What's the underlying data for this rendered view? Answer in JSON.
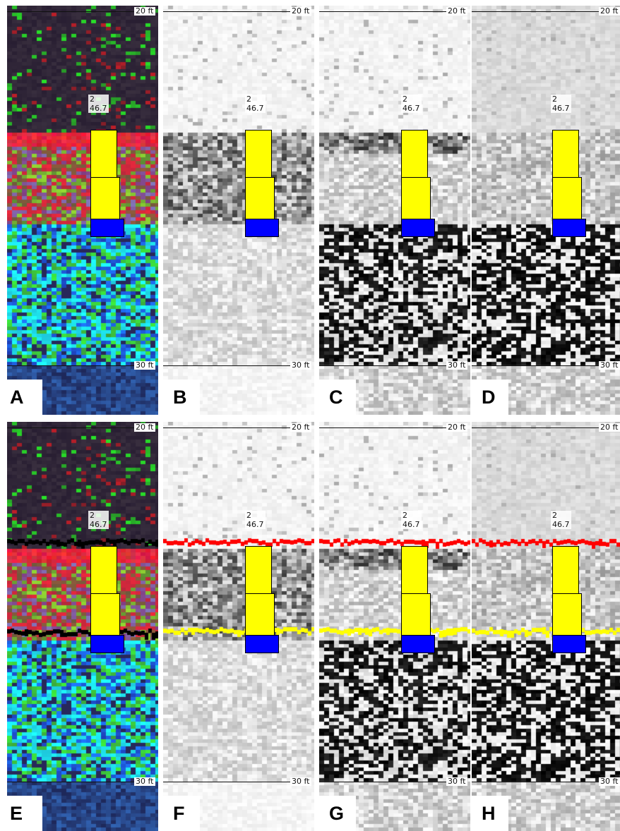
{
  "depth_top": "20 ft",
  "depth_bottom": "30 ft",
  "annotation_line1": "2",
  "annotation_line2": "46.7",
  "colors": {
    "top_boundary_color_overlay": "#ff0000",
    "bottom_boundary_color_overlay": "#ffff00",
    "boundary_false_color_overlay": "#000000",
    "glyph_fill": "#ffff00",
    "glyph_base": "#0000ff"
  },
  "panels": [
    {
      "id": "A",
      "label": "A",
      "style": "color",
      "overlay": false
    },
    {
      "id": "B",
      "label": "B",
      "style": "gray-light",
      "overlay": false
    },
    {
      "id": "C",
      "label": "C",
      "style": "gray-medium",
      "overlay": false
    },
    {
      "id": "D",
      "label": "D",
      "style": "gray-strong",
      "overlay": false
    },
    {
      "id": "E",
      "label": "E",
      "style": "color",
      "overlay": true
    },
    {
      "id": "F",
      "label": "F",
      "style": "gray-light",
      "overlay": true
    },
    {
      "id": "G",
      "label": "G",
      "style": "gray-medium",
      "overlay": true
    },
    {
      "id": "H",
      "label": "H",
      "style": "gray-strong",
      "overlay": true
    }
  ]
}
